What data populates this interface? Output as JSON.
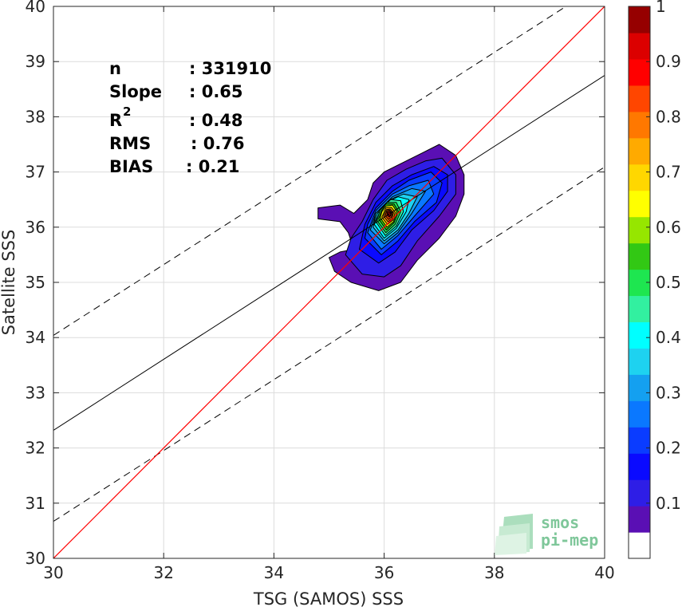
{
  "chart_data": {
    "type": "heatmap",
    "subtype": "density-scatter",
    "xlabel": "TSG (SAMOS) SSS",
    "ylabel": "Satellite SSS",
    "xlim": [
      30,
      40
    ],
    "ylim": [
      30,
      40
    ],
    "xticks": [
      "30",
      "32",
      "34",
      "36",
      "38",
      "40"
    ],
    "yticks": [
      "30",
      "31",
      "32",
      "33",
      "34",
      "35",
      "36",
      "37",
      "38",
      "39",
      "40"
    ],
    "grid": true,
    "stats": [
      {
        "label": "n",
        "value": ": 331910"
      },
      {
        "label": "Slope",
        "value": ": 0.65"
      },
      {
        "label": "R",
        "sup": "2",
        "value": ": 0.48"
      },
      {
        "label": "RMS",
        "value": ": 0.76"
      },
      {
        "label": "BIAS",
        "value": ": 0.21"
      }
    ],
    "lines": {
      "identity": {
        "color": "#ff0000",
        "points": [
          [
            30,
            30
          ],
          [
            40,
            40
          ]
        ]
      },
      "regression": {
        "color": "#000000",
        "intercept_at_30": 32.32,
        "value_at_40": 38.75
      },
      "upper_bound": {
        "color": "#000000",
        "dashed": true,
        "points": [
          [
            30,
            34.04
          ],
          [
            39.3,
            40
          ]
        ]
      },
      "lower_bound": {
        "color": "#000000",
        "dashed": true,
        "points": [
          [
            30,
            30.67
          ],
          [
            40,
            37.09
          ]
        ]
      }
    },
    "density_peak": {
      "x": 36.1,
      "y": 36.25
    },
    "colorbar": {
      "range": [
        0,
        1
      ],
      "ticks": [
        "0.1",
        "0.2",
        "0.3",
        "0.4",
        "0.5",
        "0.6",
        "0.7",
        "0.8",
        "0.9",
        "1"
      ],
      "colors": [
        "#ffffff",
        "#5a0fb4",
        "#2e1ee6",
        "#0a0aff",
        "#0a3cff",
        "#0a78ff",
        "#14a0f0",
        "#1ed2f0",
        "#00ffff",
        "#32f0a0",
        "#1ee650",
        "#32c814",
        "#96e600",
        "#ffff00",
        "#ffd700",
        "#ffaa00",
        "#ff7800",
        "#ff4600",
        "#ff0000",
        "#dc0000",
        "#960000"
      ]
    }
  },
  "logo": {
    "line1": "smos",
    "line2": "pi-mep"
  }
}
